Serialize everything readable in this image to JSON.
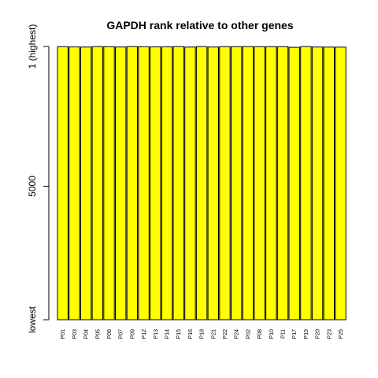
{
  "chart_data": {
    "type": "bar",
    "title": "GAPDH rank relative to other genes",
    "xlabel": "",
    "ylabel": "",
    "categories": [
      "P01",
      "P03",
      "P04",
      "P05",
      "P06",
      "P07",
      "P09",
      "P12",
      "P13",
      "P14",
      "P15",
      "P16",
      "P18",
      "P21",
      "P22",
      "P24",
      "P02",
      "P08",
      "P10",
      "P11",
      "P17",
      "P19",
      "P20",
      "P23",
      "P25"
    ],
    "values": [
      9.1,
      18.4,
      22.0,
      7.2,
      8.0,
      20.6,
      5.3,
      12.9,
      16.8,
      15.5,
      5.7,
      22.9,
      6.0,
      21.6,
      8.9,
      7.4,
      6.6,
      8.5,
      9.3,
      7.9,
      31.5,
      5.0,
      21.1,
      23.8,
      25.0
    ],
    "ylim_note": "rank axis reversed: 1 (highest) at top",
    "y_ticks": [
      {
        "value": 1,
        "label": "1 (highest)"
      },
      {
        "value": 5000,
        "label": "5000"
      },
      {
        "value": 9775,
        "label": "lowest"
      }
    ],
    "ylim": [
      1,
      9775
    ],
    "bar_color": "#ffff00",
    "bar_edge_color": "#000000",
    "grid": false,
    "legend": "none"
  }
}
